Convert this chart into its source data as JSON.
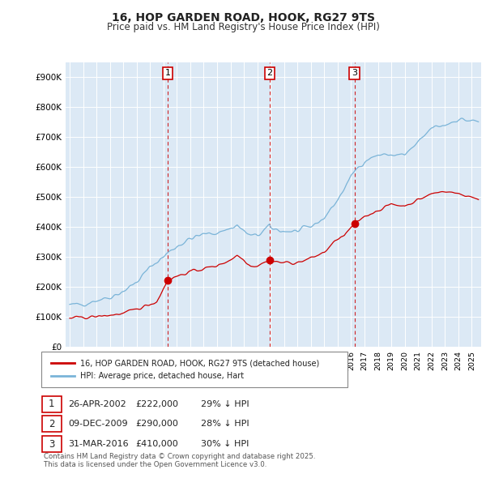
{
  "title": "16, HOP GARDEN ROAD, HOOK, RG27 9TS",
  "subtitle": "Price paid vs. HM Land Registry's House Price Index (HPI)",
  "ylim": [
    0,
    950000
  ],
  "yticks": [
    0,
    100000,
    200000,
    300000,
    400000,
    500000,
    600000,
    700000,
    800000,
    900000
  ],
  "ytick_labels": [
    "£0",
    "£100K",
    "£200K",
    "£300K",
    "£400K",
    "£500K",
    "£600K",
    "£700K",
    "£800K",
    "£900K"
  ],
  "hpi_color": "#7ab4d8",
  "price_color": "#cc0000",
  "vline_color": "#cc0000",
  "background_color": "#dce9f5",
  "sale_date_years": [
    2002.322,
    2009.936,
    2016.247
  ],
  "sale_prices": [
    222000,
    290000,
    410000
  ],
  "sale_labels": [
    "1",
    "2",
    "3"
  ],
  "legend_label_price": "16, HOP GARDEN ROAD, HOOK, RG27 9TS (detached house)",
  "legend_label_hpi": "HPI: Average price, detached house, Hart",
  "table_rows": [
    {
      "num": "1",
      "date": "26-APR-2002",
      "price": "£222,000",
      "pct": "29% ↓ HPI"
    },
    {
      "num": "2",
      "date": "09-DEC-2009",
      "price": "£290,000",
      "pct": "28% ↓ HPI"
    },
    {
      "num": "3",
      "date": "31-MAR-2016",
      "price": "£410,000",
      "pct": "30% ↓ HPI"
    }
  ],
  "footer": "Contains HM Land Registry data © Crown copyright and database right 2025.\nThis data is licensed under the Open Government Licence v3.0.",
  "xlim_start": 1994.7,
  "xlim_end": 2025.7,
  "hpi_anchors_x": [
    1995.0,
    1996.0,
    1997.0,
    1998.0,
    1999.0,
    2000.0,
    2001.0,
    2002.0,
    2002.322,
    2003.0,
    2004.0,
    2005.0,
    2006.0,
    2007.0,
    2007.5,
    2008.0,
    2008.5,
    2009.0,
    2009.936,
    2010.0,
    2011.0,
    2012.0,
    2013.0,
    2014.0,
    2015.0,
    2016.247,
    2017.0,
    2018.0,
    2019.0,
    2020.0,
    2021.0,
    2022.0,
    2023.0,
    2024.0,
    2025.5
  ],
  "hpi_anchors_y": [
    138000,
    142000,
    155000,
    165000,
    185000,
    215000,
    265000,
    300000,
    313000,
    335000,
    360000,
    375000,
    380000,
    395000,
    405000,
    385000,
    370000,
    370000,
    403000,
    395000,
    385000,
    385000,
    400000,
    430000,
    490000,
    586000,
    620000,
    640000,
    640000,
    640000,
    680000,
    730000,
    740000,
    760000,
    750000
  ],
  "price_anchors_x": [
    1995.0,
    1996.0,
    1997.0,
    1998.0,
    1999.0,
    2000.0,
    2001.5,
    2002.322,
    2003.0,
    2004.0,
    2005.0,
    2006.0,
    2007.0,
    2007.5,
    2008.0,
    2008.5,
    2009.0,
    2009.936,
    2010.0,
    2011.0,
    2012.0,
    2013.0,
    2014.0,
    2015.0,
    2015.5,
    2016.247,
    2017.0,
    2018.0,
    2019.0,
    2020.0,
    2021.0,
    2022.0,
    2023.0,
    2024.0,
    2025.5
  ],
  "price_anchors_y": [
    95000,
    97000,
    100000,
    105000,
    110000,
    125000,
    150000,
    222000,
    235000,
    250000,
    260000,
    270000,
    290000,
    305000,
    290000,
    270000,
    270000,
    290000,
    285000,
    280000,
    280000,
    295000,
    315000,
    360000,
    370000,
    410000,
    435000,
    455000,
    475000,
    470000,
    490000,
    510000,
    520000,
    510000,
    495000
  ]
}
